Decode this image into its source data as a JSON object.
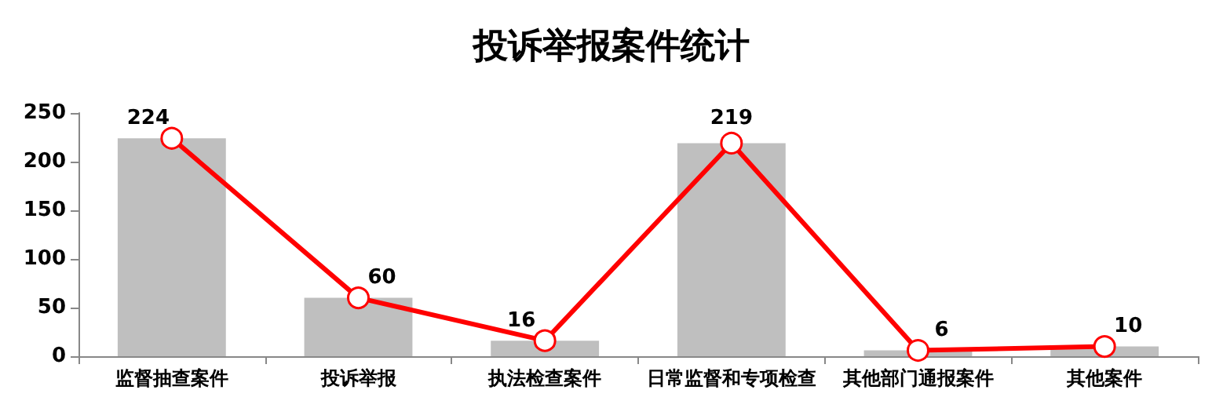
{
  "chart_data": {
    "type": "bar",
    "title": "投诉举报案件统计",
    "categories": [
      "监督抽查案件",
      "投诉举报",
      "执法检查案件",
      "日常监督和专项检查",
      "其他部门通报案件",
      "其他案件"
    ],
    "series": [
      {
        "color": "#bfbfbf",
        "values": [
          224,
          60,
          16,
          219,
          6,
          10
        ]
      },
      {
        "type": "line",
        "color": "#ff0000",
        "values": [
          224,
          60,
          16,
          219,
          6,
          10
        ],
        "marker": "circle",
        "line_style": "solid",
        "value_labels": [
          "224",
          "60",
          "16",
          "219",
          "6",
          "10"
        ]
      }
    ],
    "ylim": [
      0,
      250
    ],
    "yticks": [
      0,
      50,
      100,
      150,
      200,
      250
    ],
    "grid": false
  }
}
